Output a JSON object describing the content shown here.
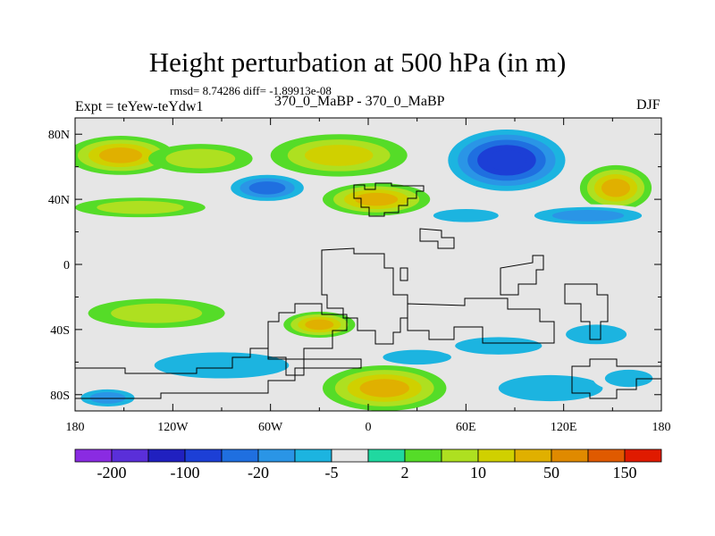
{
  "chart_data": {
    "type": "heatmap",
    "title": "Height perturbation at 500 hPa (in m)",
    "subtitle": "rmsd= 8.74286 diff= -1.89913e-08",
    "left_label": "Expt = teYew-teYdw1",
    "center_label": "370_0_MaBP - 370_0_MaBP",
    "right_label": "DJF",
    "x_ticks": [
      {
        "value": -180,
        "label": "180"
      },
      {
        "value": -120,
        "label": "120W"
      },
      {
        "value": -60,
        "label": "60W"
      },
      {
        "value": 0,
        "label": "0"
      },
      {
        "value": 60,
        "label": "60E"
      },
      {
        "value": 120,
        "label": "120E"
      },
      {
        "value": 180,
        "label": "180"
      }
    ],
    "y_ticks": [
      {
        "value": 80,
        "label": "80N"
      },
      {
        "value": 40,
        "label": "40N"
      },
      {
        "value": 0,
        "label": "0"
      },
      {
        "value": -40,
        "label": "40S"
      },
      {
        "value": -80,
        "label": "80S"
      }
    ],
    "xlim": [
      -180,
      180
    ],
    "ylim": [
      -90,
      90
    ],
    "colorbar": {
      "colors": [
        "#8a2be2",
        "#5a2fd9",
        "#2020c0",
        "#1c3fd6",
        "#1f6fe0",
        "#2a95e6",
        "#1cb4e0",
        "#e6e6e6",
        "#20d8a0",
        "#55dc28",
        "#aee020",
        "#d0d000",
        "#e0b000",
        "#e08a00",
        "#e05a00",
        "#e01a00"
      ],
      "labels": [
        "-200",
        "-100",
        "-20",
        "-5",
        "2",
        "10",
        "50",
        "150"
      ]
    },
    "field_centers": [
      {
        "lon": -152,
        "lat": 67,
        "rx": 33,
        "ry": 12,
        "value": 30
      },
      {
        "lon": -103,
        "lat": 65,
        "rx": 32,
        "ry": 9,
        "value": 6
      },
      {
        "lon": -18,
        "lat": 67,
        "rx": 42,
        "ry": 13,
        "value": 12
      },
      {
        "lon": -62,
        "lat": 47,
        "rx": 28,
        "ry": 10,
        "value": -40
      },
      {
        "lon": 5,
        "lat": 40,
        "rx": 33,
        "ry": 10,
        "value": 25
      },
      {
        "lon": -140,
        "lat": 35,
        "rx": 40,
        "ry": 6,
        "value": 6
      },
      {
        "lon": 85,
        "lat": 64,
        "rx": 42,
        "ry": 22,
        "value": -100
      },
      {
        "lon": 152,
        "lat": 47,
        "rx": 22,
        "ry": 14,
        "value": 35
      },
      {
        "lon": 135,
        "lat": 30,
        "rx": 44,
        "ry": 7,
        "value": -12
      },
      {
        "lon": 60,
        "lat": 30,
        "rx": 30,
        "ry": 6,
        "value": -6
      },
      {
        "lon": -130,
        "lat": -30,
        "rx": 42,
        "ry": 9,
        "value": 8
      },
      {
        "lon": -30,
        "lat": -37,
        "rx": 22,
        "ry": 8,
        "value": 30
      },
      {
        "lon": -90,
        "lat": -62,
        "rx": 62,
        "ry": 12,
        "value": -8
      },
      {
        "lon": 30,
        "lat": -57,
        "rx": 28,
        "ry": 6,
        "value": -10
      },
      {
        "lon": 10,
        "lat": -76,
        "rx": 38,
        "ry": 14,
        "value": 25
      },
      {
        "lon": -160,
        "lat": -82,
        "rx": 22,
        "ry": 7,
        "value": -12
      },
      {
        "lon": 80,
        "lat": -50,
        "rx": 40,
        "ry": 8,
        "value": -8
      },
      {
        "lon": 112,
        "lat": -76,
        "rx": 48,
        "ry": 12,
        "value": -8
      },
      {
        "lon": 140,
        "lat": -43,
        "rx": 28,
        "ry": 9,
        "value": -8
      },
      {
        "lon": 160,
        "lat": -70,
        "rx": 22,
        "ry": 8,
        "value": -6
      }
    ]
  }
}
